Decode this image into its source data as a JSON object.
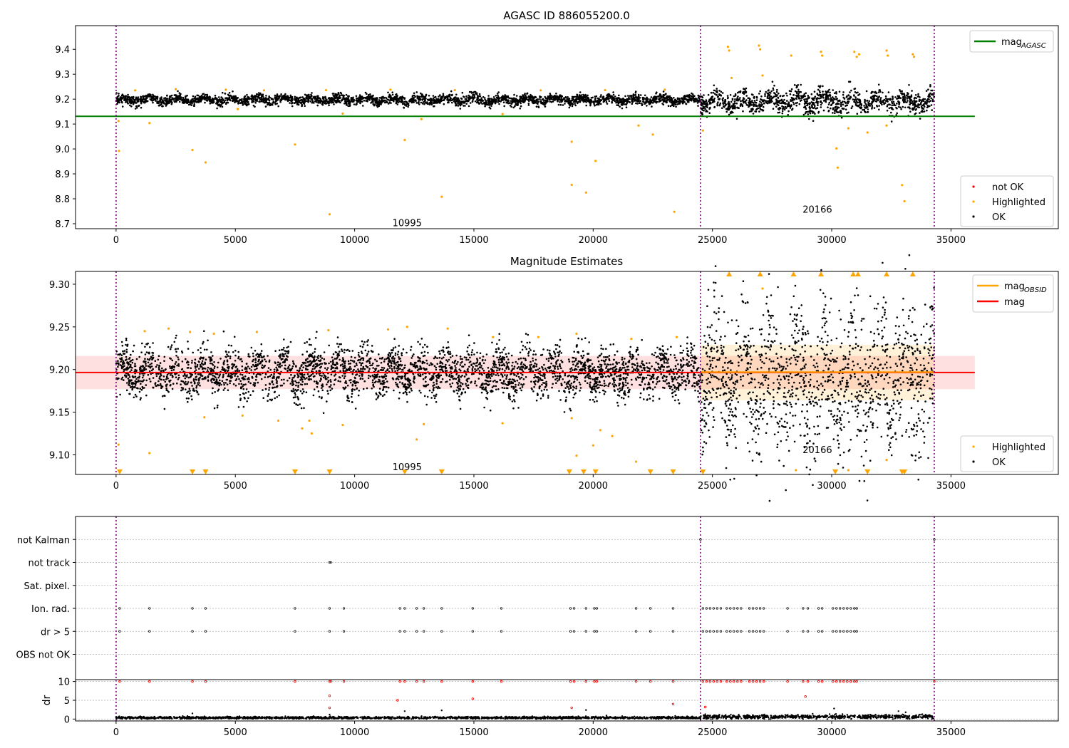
{
  "colors": {
    "ok": "#000000",
    "highlighted": "#ffa500",
    "not_ok": "#ff0000",
    "mag_agasc": "#008000",
    "mag_obsid": "#ffa500",
    "mag": "#ff0000",
    "obs_boundary": "#800080",
    "grid": "#b0b0b0"
  },
  "chart_data": [
    {
      "id": "agasc",
      "type": "scatter",
      "title": "AGASC ID 886055200.0",
      "xlim": [
        -1700,
        39500
      ],
      "ylim": [
        8.68,
        9.495
      ],
      "xticks": [
        0,
        5000,
        10000,
        15000,
        20000,
        25000,
        30000,
        35000
      ],
      "xtick_labels": [
        "0",
        "5000",
        "10000",
        "15000",
        "20000",
        "25000",
        "30000",
        "35000"
      ],
      "yticks": [
        8.7,
        8.8,
        8.9,
        9.0,
        9.1,
        9.2,
        9.3,
        9.4
      ],
      "ytick_labels": [
        "8.7",
        "8.8",
        "8.9",
        "9.0",
        "9.1",
        "9.2",
        "9.3",
        "9.4"
      ],
      "obs_boundaries": [
        0,
        24500,
        34300
      ],
      "obs_labels": [
        {
          "text": "10995",
          "x": 12200,
          "y": 8.69
        },
        {
          "text": "20166",
          "x": 29400,
          "y": 8.745
        }
      ],
      "hlines": [
        {
          "name": "mag_AGASC",
          "y": 9.131,
          "x": [
            -1700,
            36000
          ],
          "color": "#008000"
        }
      ],
      "ok_bands": [
        {
          "x": [
            0,
            24500
          ],
          "center": 9.197,
          "spread": 0.022
        },
        {
          "x": [
            24500,
            34300
          ],
          "center": 9.19,
          "spread": 0.05
        }
      ],
      "highlighted_points": [
        [
          100,
          9.112
        ],
        [
          120,
          8.992
        ],
        [
          1400,
          9.104
        ],
        [
          3200,
          8.996
        ],
        [
          3750,
          8.946
        ],
        [
          7500,
          9.018
        ],
        [
          8950,
          8.738
        ],
        [
          12100,
          9.036
        ],
        [
          13650,
          8.808
        ],
        [
          19100,
          9.029
        ],
        [
          19100,
          8.856
        ],
        [
          19700,
          8.825
        ],
        [
          20100,
          8.952
        ],
        [
          21900,
          9.094
        ],
        [
          22500,
          9.058
        ],
        [
          23400,
          8.748
        ],
        [
          24600,
          9.074
        ],
        [
          30200,
          9.002
        ],
        [
          30250,
          8.925
        ],
        [
          30700,
          9.083
        ],
        [
          31500,
          9.066
        ],
        [
          32300,
          9.094
        ],
        [
          32950,
          8.855
        ],
        [
          33050,
          8.79
        ],
        [
          28300,
          9.375
        ],
        [
          25650,
          9.41
        ],
        [
          25700,
          9.395
        ],
        [
          26950,
          9.415
        ],
        [
          27000,
          9.4
        ],
        [
          29550,
          9.39
        ],
        [
          29600,
          9.375
        ],
        [
          30950,
          9.39
        ],
        [
          31050,
          9.37
        ],
        [
          31150,
          9.38
        ],
        [
          32300,
          9.395
        ],
        [
          32350,
          9.375
        ],
        [
          33400,
          9.38
        ],
        [
          33450,
          9.37
        ],
        [
          800,
          9.235
        ],
        [
          2500,
          9.24
        ],
        [
          4600,
          9.238
        ],
        [
          6200,
          9.235
        ],
        [
          8800,
          9.236
        ],
        [
          11500,
          9.238
        ],
        [
          14200,
          9.236
        ],
        [
          17800,
          9.235
        ],
        [
          20500,
          9.236
        ],
        [
          23000,
          9.238
        ],
        [
          27100,
          9.295
        ],
        [
          25800,
          9.285
        ],
        [
          5100,
          9.16
        ],
        [
          9500,
          9.142
        ],
        [
          12800,
          9.12
        ],
        [
          16200,
          9.14
        ]
      ],
      "legend_lines": [
        {
          "label": "mag",
          "sub": "AGASC",
          "color": "#008000"
        }
      ],
      "legend_markers": [
        {
          "label": "not OK",
          "color": "#ff0000"
        },
        {
          "label": "Highlighted",
          "color": "#ffa500"
        },
        {
          "label": "OK",
          "color": "#000000"
        }
      ]
    },
    {
      "id": "estimates",
      "type": "scatter",
      "title": "Magnitude Estimates",
      "xlim": [
        -1700,
        39500
      ],
      "ylim": [
        9.077,
        9.315
      ],
      "xticks": [
        0,
        5000,
        10000,
        15000,
        20000,
        25000,
        30000,
        35000
      ],
      "xtick_labels": [
        "0",
        "5000",
        "10000",
        "15000",
        "20000",
        "25000",
        "30000",
        "35000"
      ],
      "yticks": [
        9.1,
        9.15,
        9.2,
        9.25,
        9.3
      ],
      "ytick_labels": [
        "9.10",
        "9.15",
        "9.20",
        "9.25",
        "9.30"
      ],
      "obs_boundaries": [
        0,
        24500,
        34300
      ],
      "obs_labels": [
        {
          "text": "10995",
          "x": 12200,
          "y": 9.082
        },
        {
          "text": "20166",
          "x": 29400,
          "y": 9.102
        }
      ],
      "hlines": [
        {
          "name": "mag",
          "y": 9.1965,
          "x": [
            -1700,
            36000
          ],
          "color": "#ff0000"
        },
        {
          "name": "mag_OBSID",
          "y": 9.197,
          "x": [
            24500,
            34300
          ],
          "color": "#ffa500"
        }
      ],
      "bands": [
        {
          "x": [
            -1700,
            36000
          ],
          "y": [
            9.177,
            9.216
          ],
          "color": "#ff0000",
          "alpha": 0.12
        },
        {
          "x": [
            24500,
            34300
          ],
          "y": [
            9.164,
            9.229
          ],
          "color": "#ffa500",
          "alpha": 0.15
        }
      ],
      "ok_bands": [
        {
          "x": [
            0,
            24500
          ],
          "center": 9.197,
          "spread": 0.03
        },
        {
          "x": [
            24500,
            34300
          ],
          "center": 9.19,
          "spread": 0.09
        }
      ],
      "highlighted_points": [
        [
          100,
          9.112
        ],
        [
          1400,
          9.102
        ],
        [
          3700,
          9.144
        ],
        [
          5300,
          9.146
        ],
        [
          6800,
          9.14
        ],
        [
          7800,
          9.131
        ],
        [
          8100,
          9.14
        ],
        [
          8200,
          9.125
        ],
        [
          9500,
          9.135
        ],
        [
          12600,
          9.118
        ],
        [
          12900,
          9.136
        ],
        [
          16200,
          9.137
        ],
        [
          19100,
          9.143
        ],
        [
          19300,
          9.099
        ],
        [
          20000,
          9.111
        ],
        [
          20300,
          9.129
        ],
        [
          20800,
          9.122
        ],
        [
          21800,
          9.092
        ],
        [
          28500,
          9.082
        ],
        [
          30700,
          9.082
        ],
        [
          32300,
          9.094
        ],
        [
          27100,
          9.295
        ],
        [
          1200,
          9.245
        ],
        [
          2200,
          9.248
        ],
        [
          3100,
          9.244
        ],
        [
          4100,
          9.242
        ],
        [
          5900,
          9.244
        ],
        [
          8900,
          9.246
        ],
        [
          11400,
          9.247
        ],
        [
          12200,
          9.25
        ],
        [
          13900,
          9.248
        ],
        [
          15800,
          9.238
        ],
        [
          17700,
          9.238
        ],
        [
          19300,
          9.242
        ],
        [
          21600,
          9.236
        ],
        [
          23500,
          9.238
        ]
      ],
      "up_triangles": [
        25700,
        27000,
        28400,
        29550,
        30900,
        31100,
        32300,
        33400
      ],
      "down_triangles": [
        150,
        3200,
        3750,
        7500,
        8950,
        12100,
        13650,
        19000,
        19600,
        20100,
        22400,
        23350,
        24600,
        30150,
        31500,
        32950,
        33050
      ],
      "legend_lines": [
        {
          "label": "mag",
          "sub": "OBSID",
          "color": "#ffa500"
        },
        {
          "label": "mag",
          "sub": "",
          "color": "#ff0000"
        }
      ],
      "legend_markers": [
        {
          "label": "Highlighted",
          "color": "#ffa500"
        },
        {
          "label": "OK",
          "color": "#000000"
        }
      ]
    },
    {
      "id": "flags",
      "type": "scatter",
      "title": "",
      "xlim": [
        -1700,
        39500
      ],
      "categories": [
        "not Kalman",
        "not track",
        "Sat. pixel.",
        "Ion. rad.",
        "dr > 5",
        "OBS not OK"
      ],
      "obs_boundaries": [
        0,
        24500,
        34300
      ],
      "flag_points": {
        "not Kalman": [
          24500,
          34300
        ],
        "not track": [
          8950,
          9000
        ],
        "Sat. pixel.": [],
        "Ion. rad.": [
          150,
          1400,
          3200,
          3750,
          7500,
          8950,
          9550,
          11900,
          12100,
          12600,
          12900,
          13650,
          14950,
          16150,
          19050,
          19200,
          19700,
          20050,
          20150,
          21800,
          22400,
          23350,
          24600,
          24750,
          24900,
          25050,
          25200,
          25350,
          25600,
          25750,
          25900,
          26050,
          26200,
          26550,
          26700,
          26850,
          27000,
          27150,
          28150,
          28800,
          29000,
          29450,
          29600,
          30050,
          30200,
          30350,
          30500,
          30650,
          30800,
          30950,
          31050
        ],
        "dr > 5": [
          150,
          1400,
          3200,
          3750,
          7500,
          8950,
          9550,
          11900,
          12100,
          12600,
          12900,
          13650,
          14950,
          16150,
          19050,
          19200,
          19700,
          20050,
          20150,
          21800,
          22400,
          23350,
          24600,
          24750,
          24900,
          25050,
          25200,
          25350,
          25600,
          25750,
          25900,
          26050,
          26200,
          26550,
          26700,
          26850,
          27000,
          27150,
          28150,
          28800,
          29000,
          29450,
          29600,
          30050,
          30200,
          30350,
          30500,
          30650,
          30800,
          30950,
          31050
        ],
        "OBS not OK": []
      }
    },
    {
      "id": "dr",
      "type": "scatter",
      "ylabel": "dr",
      "xlim": [
        -1700,
        39500
      ],
      "ylim": [
        -0.5,
        10.5
      ],
      "xticks": [
        0,
        5000,
        10000,
        15000,
        20000,
        25000,
        30000,
        35000
      ],
      "xtick_labels": [
        "0",
        "5000",
        "10000",
        "15000",
        "20000",
        "25000",
        "30000",
        "35000"
      ],
      "yticks": [
        0,
        5,
        10
      ],
      "ytick_labels": [
        "0",
        "5",
        "10"
      ],
      "obs_boundaries": [
        0,
        24500,
        34300
      ],
      "red_points": [
        [
          8950,
          6.2
        ],
        [
          8950,
          3.0
        ],
        [
          11800,
          5.0
        ],
        [
          14950,
          5.4
        ],
        [
          19100,
          3.0
        ],
        [
          23350,
          4.0
        ],
        [
          24700,
          3.2
        ],
        [
          28900,
          6.0
        ],
        [
          150,
          10
        ],
        [
          1400,
          10
        ],
        [
          3200,
          10
        ],
        [
          3750,
          10
        ],
        [
          7500,
          10
        ],
        [
          8950,
          10
        ],
        [
          9000,
          10
        ],
        [
          9550,
          10
        ],
        [
          11900,
          10
        ],
        [
          12100,
          10
        ],
        [
          12600,
          10
        ],
        [
          12900,
          10
        ],
        [
          13650,
          10
        ],
        [
          14950,
          10
        ],
        [
          16150,
          10
        ],
        [
          19050,
          10
        ],
        [
          19200,
          10
        ],
        [
          19700,
          10
        ],
        [
          20050,
          10
        ],
        [
          20150,
          10
        ],
        [
          21800,
          10
        ],
        [
          22400,
          10
        ],
        [
          23350,
          10
        ],
        [
          24600,
          10
        ],
        [
          24750,
          10
        ],
        [
          24900,
          10
        ],
        [
          25050,
          10
        ],
        [
          25200,
          10
        ],
        [
          25350,
          10
        ],
        [
          25600,
          10
        ],
        [
          25750,
          10
        ],
        [
          25900,
          10
        ],
        [
          26050,
          10
        ],
        [
          26200,
          10
        ],
        [
          26550,
          10
        ],
        [
          26700,
          10
        ],
        [
          26850,
          10
        ],
        [
          27000,
          10
        ],
        [
          27150,
          10
        ],
        [
          28150,
          10
        ],
        [
          28800,
          10
        ],
        [
          29000,
          10
        ],
        [
          29450,
          10
        ],
        [
          29600,
          10
        ],
        [
          30050,
          10
        ],
        [
          30200,
          10
        ],
        [
          30350,
          10
        ],
        [
          30500,
          10
        ],
        [
          30650,
          10
        ],
        [
          30800,
          10
        ],
        [
          30950,
          10
        ],
        [
          31050,
          10
        ],
        [
          34300,
          10
        ]
      ],
      "ok_bands": [
        {
          "x": [
            0,
            24500
          ],
          "center": 0.35,
          "spread": 0.3
        },
        {
          "x": [
            24500,
            34300
          ],
          "center": 0.6,
          "spread": 0.5
        }
      ],
      "ok_sparse": [
        [
          3200,
          1.5
        ],
        [
          12100,
          2.1
        ],
        [
          13650,
          2.3
        ],
        [
          19700,
          2.4
        ],
        [
          30100,
          2.8
        ],
        [
          8950,
          1.2
        ],
        [
          32800,
          2.1
        ],
        [
          33100,
          1.8
        ]
      ]
    }
  ]
}
